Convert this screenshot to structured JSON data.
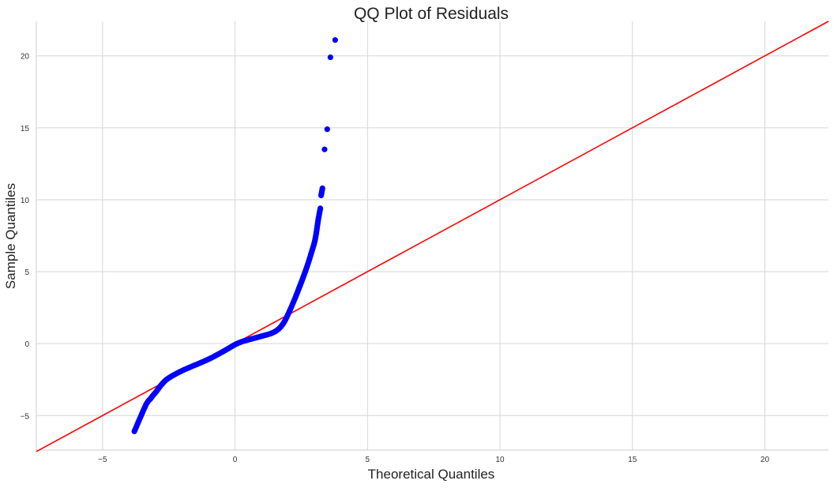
{
  "chart_data": {
    "type": "scatter",
    "title": "QQ Plot of Residuals",
    "xlabel": "Theoretical Quantiles",
    "ylabel": "Sample Quantiles",
    "xlim": [
      -7.5,
      22.4
    ],
    "ylim": [
      -7.4,
      22.4
    ],
    "xticks": [
      -5,
      0,
      5,
      10,
      15,
      20
    ],
    "yticks": [
      -5,
      0,
      5,
      10,
      15,
      20
    ],
    "xtick_labels": [
      "−5",
      "0",
      "5",
      "10",
      "15",
      "20"
    ],
    "ytick_labels": [
      "−5",
      "0",
      "5",
      "10",
      "15",
      "20"
    ],
    "grid": true,
    "legend": "none",
    "series": [
      {
        "kind": "points",
        "color": "#0000ff",
        "points": [
          [
            -3.8,
            -6.1
          ],
          [
            -3.65,
            -5.45
          ],
          [
            -3.52,
            -4.9
          ],
          [
            -3.45,
            -4.6
          ],
          [
            -3.35,
            -4.2
          ],
          [
            -3.28,
            -4.0
          ],
          [
            -3.2,
            -3.85
          ],
          [
            -3.12,
            -3.65
          ],
          [
            -3.05,
            -3.5
          ],
          [
            -2.98,
            -3.35
          ],
          [
            -2.92,
            -3.2
          ],
          [
            -2.86,
            -3.05
          ],
          [
            -2.8,
            -2.9
          ],
          [
            -2.74,
            -2.78
          ],
          [
            -2.68,
            -2.66
          ],
          [
            -2.62,
            -2.55
          ],
          [
            -2.55,
            -2.45
          ],
          [
            -2.45,
            -2.33
          ],
          [
            -2.35,
            -2.22
          ],
          [
            -2.25,
            -2.12
          ],
          [
            -2.15,
            -2.02
          ],
          [
            -2.05,
            -1.93
          ],
          [
            -1.95,
            -1.84
          ],
          [
            -1.85,
            -1.76
          ],
          [
            -1.75,
            -1.68
          ],
          [
            -1.65,
            -1.6
          ],
          [
            -1.55,
            -1.52
          ],
          [
            -1.45,
            -1.45
          ],
          [
            -1.35,
            -1.37
          ],
          [
            -1.25,
            -1.29
          ],
          [
            -1.15,
            -1.21
          ],
          [
            -1.05,
            -1.13
          ],
          [
            -0.95,
            -1.04
          ],
          [
            -0.85,
            -0.95
          ],
          [
            -0.75,
            -0.85
          ],
          [
            -0.65,
            -0.75
          ],
          [
            -0.55,
            -0.65
          ],
          [
            -0.45,
            -0.55
          ],
          [
            -0.35,
            -0.44
          ],
          [
            -0.25,
            -0.34
          ],
          [
            -0.15,
            -0.23
          ],
          [
            -0.05,
            -0.12
          ],
          [
            0.05,
            -0.02
          ],
          [
            0.15,
            0.06
          ],
          [
            0.25,
            0.13
          ],
          [
            0.35,
            0.19
          ],
          [
            0.45,
            0.24
          ],
          [
            0.55,
            0.29
          ],
          [
            0.65,
            0.34
          ],
          [
            0.75,
            0.39
          ],
          [
            0.85,
            0.44
          ],
          [
            0.95,
            0.49
          ],
          [
            1.05,
            0.54
          ],
          [
            1.15,
            0.59
          ],
          [
            1.25,
            0.64
          ],
          [
            1.35,
            0.7
          ],
          [
            1.45,
            0.78
          ],
          [
            1.55,
            0.88
          ],
          [
            1.65,
            1.02
          ],
          [
            1.75,
            1.22
          ],
          [
            1.82,
            1.4
          ],
          [
            1.88,
            1.58
          ],
          [
            1.93,
            1.76
          ],
          [
            1.98,
            1.95
          ],
          [
            2.03,
            2.15
          ],
          [
            2.08,
            2.35
          ],
          [
            2.13,
            2.56
          ],
          [
            2.18,
            2.78
          ],
          [
            2.23,
            3.0
          ],
          [
            2.28,
            3.22
          ],
          [
            2.33,
            3.45
          ],
          [
            2.38,
            3.68
          ],
          [
            2.43,
            3.92
          ],
          [
            2.48,
            4.16
          ],
          [
            2.53,
            4.4
          ],
          [
            2.58,
            4.65
          ],
          [
            2.63,
            4.9
          ],
          [
            2.68,
            5.15
          ],
          [
            2.73,
            5.42
          ],
          [
            2.78,
            5.7
          ],
          [
            2.83,
            6.0
          ],
          [
            2.88,
            6.3
          ],
          [
            2.93,
            6.6
          ],
          [
            2.98,
            6.9
          ],
          [
            3.02,
            7.2
          ],
          [
            3.06,
            7.6
          ],
          [
            3.1,
            8.1
          ],
          [
            3.14,
            8.6
          ],
          [
            3.18,
            9.0
          ],
          [
            3.22,
            9.4
          ],
          [
            3.25,
            10.3
          ],
          [
            3.3,
            10.8
          ],
          [
            3.38,
            13.5
          ],
          [
            3.48,
            14.9
          ],
          [
            3.6,
            19.9
          ],
          [
            3.78,
            21.1
          ]
        ]
      },
      {
        "kind": "line",
        "color": "#ff0000",
        "x": [
          -7.5,
          22.4
        ],
        "y": [
          -7.5,
          22.4
        ]
      }
    ]
  }
}
